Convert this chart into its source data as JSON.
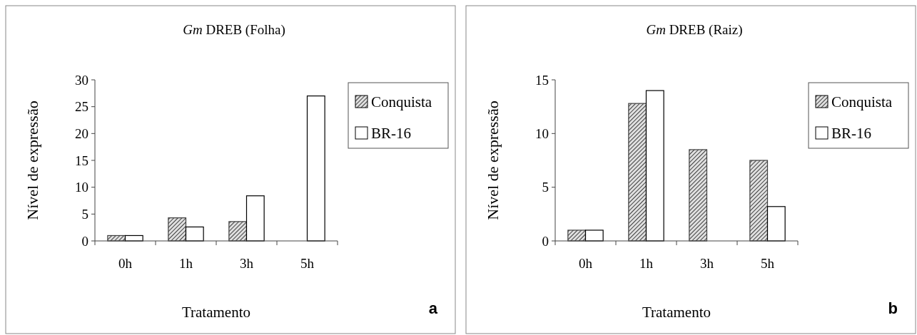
{
  "chart_data": [
    {
      "type": "bar",
      "title": "Gm DREB (Folha)",
      "xlabel": "Tratamento",
      "ylabel": "Nível de expressão",
      "categories": [
        "0h",
        "1h",
        "3h",
        "5h"
      ],
      "series": [
        {
          "name": "Conquista",
          "color": "#404040",
          "values": [
            1.0,
            4.3,
            3.6,
            null
          ]
        },
        {
          "name": "BR-16",
          "color": "#ffffff",
          "values": [
            1.0,
            2.6,
            8.4,
            27.0
          ]
        }
      ],
      "ylim": [
        0,
        30
      ],
      "yticks": [
        0,
        5,
        10,
        15,
        20,
        25,
        30
      ],
      "legend": "right",
      "annotations": [
        "a"
      ]
    },
    {
      "type": "bar",
      "title": "Gm DREB (Raiz)",
      "xlabel": "Tratamento",
      "ylabel": "Nível de expressão",
      "categories": [
        "0h",
        "1h",
        "3h",
        "5h"
      ],
      "series": [
        {
          "name": "Conquista",
          "color": "#404040",
          "values": [
            1.0,
            12.8,
            8.5,
            7.5
          ]
        },
        {
          "name": "BR-16",
          "color": "#ffffff",
          "values": [
            1.0,
            14.0,
            null,
            3.2
          ]
        }
      ],
      "ylim": [
        0,
        15
      ],
      "yticks": [
        0,
        5,
        10,
        15
      ],
      "legend": "right",
      "annotations": [
        "b"
      ]
    }
  ]
}
